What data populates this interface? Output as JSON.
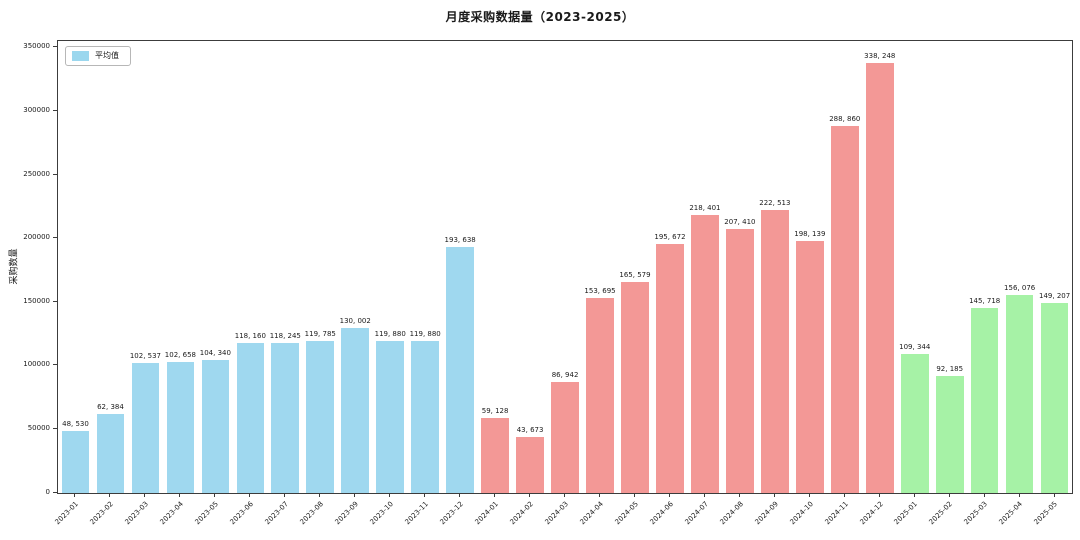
{
  "title": "月度采购数据量（2023-2025）",
  "legend": {
    "label": "平均值",
    "swatch_color": "#9bd7ee"
  },
  "chart_data": {
    "type": "bar",
    "title": "月度采购数据量（2023-2025）",
    "xlabel": "",
    "ylabel": "采购数量",
    "ylim": [
      0,
      355500
    ],
    "yticks": [
      0,
      50000,
      100000,
      150000,
      200000,
      250000,
      300000,
      350000
    ],
    "grid": false,
    "legend_entries": [
      "平均值"
    ],
    "legend_position": "upper-left",
    "categories": [
      "2023-01",
      "2023-02",
      "2023-03",
      "2023-04",
      "2023-05",
      "2023-06",
      "2023-07",
      "2023-08",
      "2023-09",
      "2023-10",
      "2023-11",
      "2023-12",
      "2024-01",
      "2024-02",
      "2024-03",
      "2024-04",
      "2024-05",
      "2024-06",
      "2024-07",
      "2024-08",
      "2024-09",
      "2024-10",
      "2024-11",
      "2024-12",
      "2025-01",
      "2025-02",
      "2025-03",
      "2025-04",
      "2025-05"
    ],
    "values": [
      48530,
      62384,
      102537,
      102658,
      104340,
      118160,
      118245,
      119785,
      130002,
      119880,
      119880,
      193638,
      59128,
      43673,
      86942,
      153695,
      165579,
      195672,
      218401,
      207410,
      222513,
      198139,
      288860,
      338248,
      109344,
      92185,
      145718,
      156076,
      149207
    ],
    "series_colors": {
      "2023": "#9fd8ef",
      "2024": "#f39896",
      "2025": "#a6f2a6"
    }
  }
}
